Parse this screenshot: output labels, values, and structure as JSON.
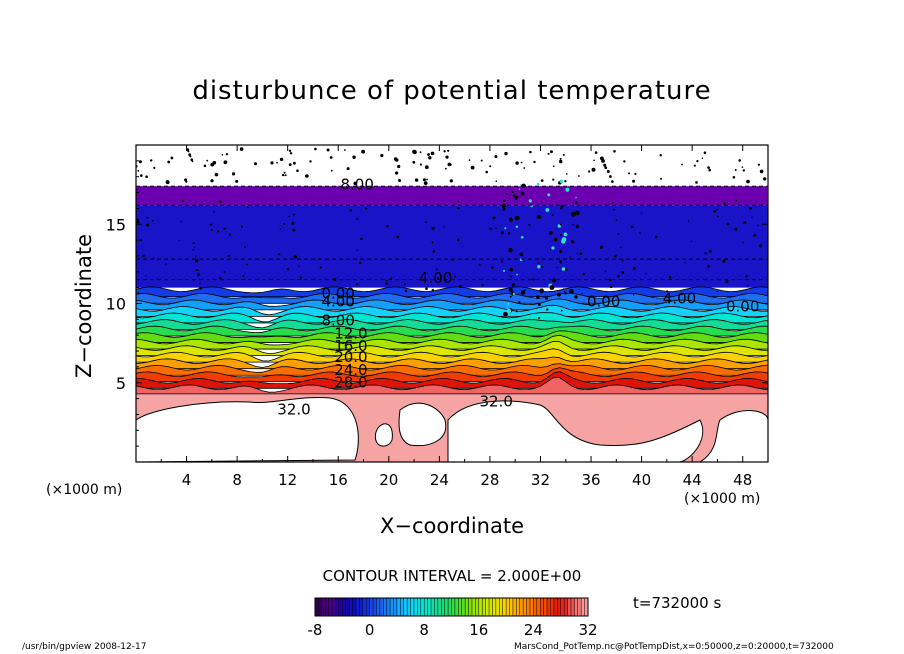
{
  "chart_data": {
    "type": "heatmap",
    "title": "disturbunce of potential temperature",
    "xlabel": "X−coordinate",
    "ylabel": "Z−coordinate",
    "x_unit": "(×1000 m)",
    "x_ticks": [
      4,
      8,
      12,
      16,
      20,
      24,
      28,
      32,
      36,
      40,
      44,
      48
    ],
    "y_ticks": [
      5,
      10,
      15
    ],
    "xlim": [
      0,
      50
    ],
    "ylim": [
      0,
      20
    ],
    "contour_interval": "CONTOUR INTERVAL = 2.000E+00",
    "contour_labels": [
      "8.00",
      "4.00",
      "0.00",
      "4.00",
      "8.00",
      "12.0",
      "16.0",
      "20.0",
      "24.0",
      "28.0",
      "32.0",
      "32.0",
      "0.00",
      "4.00",
      "0.00"
    ],
    "colorbar": {
      "min": -8,
      "max": 32,
      "ticks": [
        -8,
        0,
        8,
        16,
        24,
        32
      ]
    },
    "time": "t=732000 s"
  },
  "footer": {
    "left": "/usr/bin/gpview   2008-12-17",
    "right": "MarsCond_PotTemp.nc@PotTempDist,x=0:50000,z=0:20000,t=732000"
  }
}
